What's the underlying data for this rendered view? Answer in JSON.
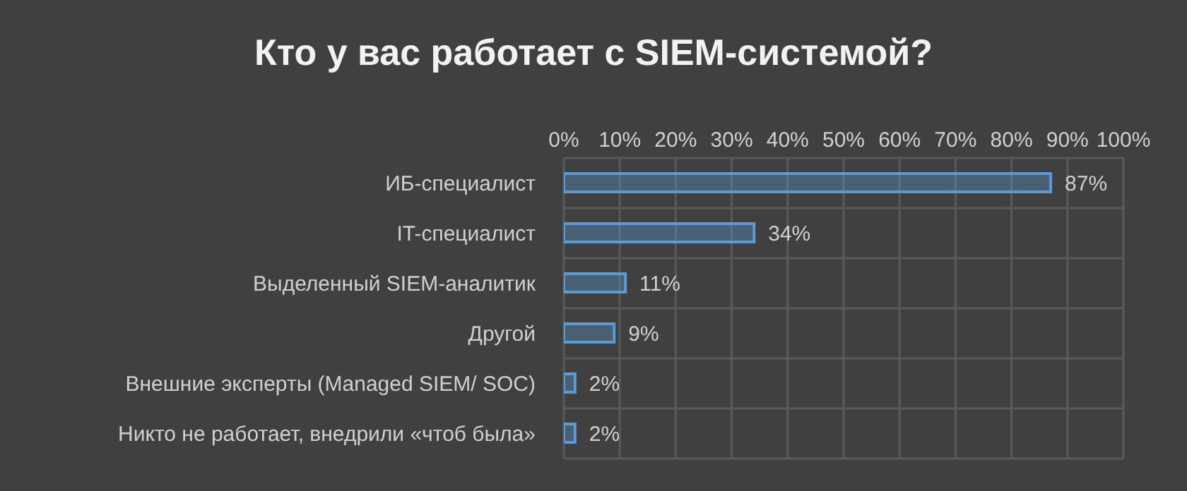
{
  "chart_data": {
    "type": "bar",
    "orientation": "horizontal",
    "title": "Кто у вас работает с SIEM-системой?",
    "categories": [
      "ИБ-специалист",
      "IT-специалист",
      "Выделенный SIEM-аналитик",
      "Другой",
      "Внешние эксперты (Managed SIEM/ SOC)",
      "Никто не работает, внедрили «чтоб была»"
    ],
    "values": [
      87,
      34,
      11,
      9,
      2,
      2
    ],
    "value_labels": [
      "87%",
      "34%",
      "11%",
      "9%",
      "2%",
      "2%"
    ],
    "color": "#5b9bd5",
    "xlim": [
      0,
      100
    ],
    "xticks": [
      {
        "value": 0,
        "label": "0%"
      },
      {
        "value": 10,
        "label": "10%"
      },
      {
        "value": 20,
        "label": "20%"
      },
      {
        "value": 30,
        "label": "30%"
      },
      {
        "value": 40,
        "label": "40%"
      },
      {
        "value": 50,
        "label": "50%"
      },
      {
        "value": 60,
        "label": "60%"
      },
      {
        "value": 70,
        "label": "70%"
      },
      {
        "value": 80,
        "label": "80%"
      },
      {
        "value": 90,
        "label": "90%"
      },
      {
        "value": 100,
        "label": "100%"
      }
    ],
    "grid": true,
    "legend": false
  }
}
